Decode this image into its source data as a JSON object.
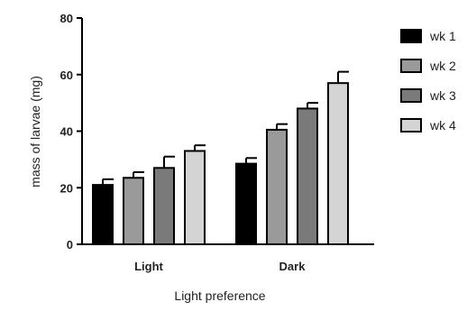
{
  "chart_data": {
    "type": "bar",
    "categories": [
      "Light",
      "Dark"
    ],
    "series": [
      {
        "name": "wk 1",
        "values": [
          21,
          28.5
        ],
        "errors": [
          2,
          2
        ],
        "color": "#000000"
      },
      {
        "name": "wk 2",
        "values": [
          23.5,
          40.5
        ],
        "errors": [
          2,
          2
        ],
        "color": "#9a9a9a"
      },
      {
        "name": "wk 3",
        "values": [
          27,
          48
        ],
        "errors": [
          4,
          2
        ],
        "color": "#7a7a7a"
      },
      {
        "name": "wk 4",
        "values": [
          33,
          57
        ],
        "errors": [
          2,
          4
        ],
        "color": "#d4d4d4"
      }
    ],
    "xlabel": "Light preference",
    "ylabel": "mass of larvae (mg)",
    "ylim": [
      0,
      80
    ],
    "yticks": [
      0,
      20,
      40,
      60,
      80
    ],
    "grid": false,
    "legend_position": "right"
  }
}
